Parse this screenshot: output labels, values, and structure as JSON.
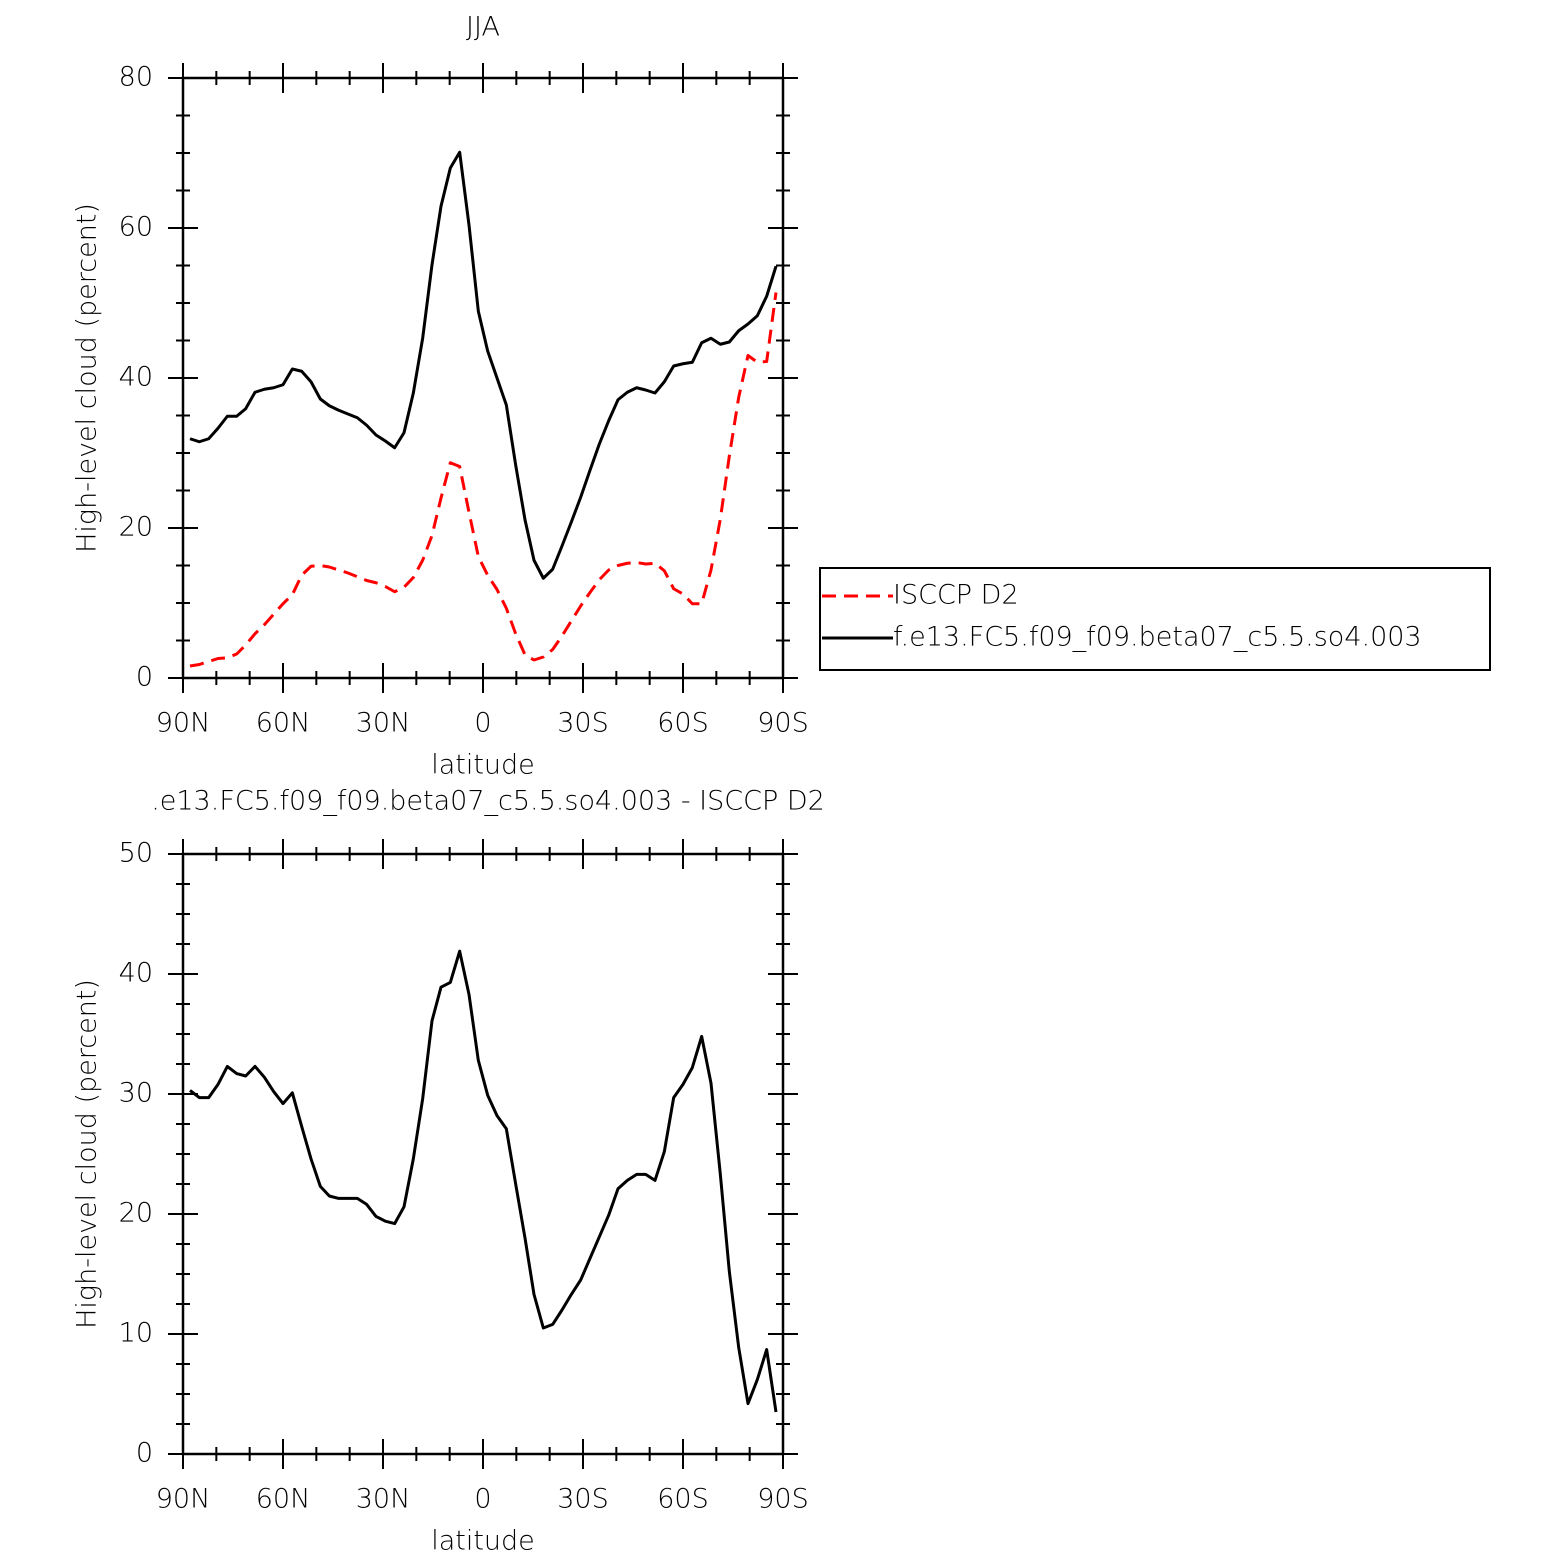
{
  "chart_data": [
    {
      "type": "line",
      "title": "JJA",
      "xlabel": "latitude",
      "ylabel": "High-level cloud (percent)",
      "x": [
        87.9,
        85.1,
        82.3,
        79.5,
        76.7,
        73.9,
        71.2,
        68.4,
        65.6,
        62.8,
        60.0,
        57.2,
        54.4,
        51.6,
        48.8,
        46.1,
        43.3,
        40.5,
        37.7,
        34.9,
        32.1,
        29.3,
        26.5,
        23.7,
        20.9,
        18.1,
        15.3,
        12.6,
        9.8,
        7.0,
        4.2,
        1.4,
        -1.4,
        -4.2,
        -7.0,
        -9.8,
        -12.6,
        -15.3,
        -18.1,
        -20.9,
        -23.7,
        -26.5,
        -29.3,
        -32.1,
        -34.9,
        -37.7,
        -40.5,
        -43.3,
        -46.1,
        -48.8,
        -51.6,
        -54.4,
        -57.2,
        -60.0,
        -62.8,
        -65.6,
        -68.4,
        -71.2,
        -73.9,
        -76.7,
        -79.5,
        -82.3,
        -85.1,
        -87.9
      ],
      "xlim": [
        90,
        -90
      ],
      "xticks": [
        {
          "value": 90,
          "label": "90N"
        },
        {
          "value": 60,
          "label": "60N"
        },
        {
          "value": 30,
          "label": "30N"
        },
        0,
        {
          "value": -30,
          "label": "30S"
        },
        {
          "value": -60,
          "label": "60S"
        },
        {
          "value": -90,
          "label": "90S"
        }
      ],
      "ylim": [
        0,
        80
      ],
      "yticks": [
        0,
        20,
        40,
        60,
        80
      ],
      "legend": "right",
      "series": [
        {
          "name": "ISCCP D2",
          "color": "#ff0000",
          "style": "dashed",
          "values": [
            1.6,
            1.8,
            2.2,
            2.6,
            2.7,
            3.2,
            4.4,
            5.9,
            7.1,
            8.5,
            9.9,
            11.1,
            13.7,
            14.9,
            15.0,
            14.8,
            14.4,
            14.0,
            13.5,
            13.0,
            12.7,
            12.2,
            11.5,
            12.1,
            13.4,
            15.7,
            19.0,
            24.0,
            28.7,
            28.2,
            22.1,
            16.2,
            13.7,
            11.8,
            9.3,
            5.9,
            3.1,
            2.4,
            2.8,
            3.8,
            5.6,
            7.6,
            9.6,
            11.4,
            13.1,
            14.4,
            15.0,
            15.3,
            15.4,
            15.2,
            15.3,
            14.3,
            11.9,
            11.2,
            9.9,
            9.9,
            14.4,
            21.2,
            29.6,
            37.4,
            43.0,
            42.1,
            42.2,
            51.4
          ]
        },
        {
          "name": "f.e13.FC5.f09_f09.beta07_c5.5.so4.003",
          "color": "#000000",
          "style": "solid",
          "values": [
            31.9,
            31.5,
            31.9,
            33.3,
            34.9,
            34.9,
            35.9,
            38.1,
            38.5,
            38.7,
            39.1,
            41.2,
            40.9,
            39.5,
            37.2,
            36.3,
            35.7,
            35.2,
            34.7,
            33.7,
            32.4,
            31.6,
            30.7,
            32.7,
            38.0,
            45.3,
            55.1,
            62.9,
            68.0,
            70.1,
            60.4,
            48.9,
            43.6,
            40.0,
            36.4,
            28.4,
            21.1,
            15.7,
            13.3,
            14.5,
            17.6,
            20.8,
            24.1,
            27.7,
            31.2,
            34.3,
            37.1,
            38.1,
            38.7,
            38.4,
            38.0,
            39.5,
            41.6,
            41.9,
            42.1,
            44.7,
            45.3,
            44.5,
            44.8,
            46.3,
            47.2,
            48.3,
            50.9,
            54.9
          ]
        }
      ]
    },
    {
      "type": "line",
      "title": ".e13.FC5.f09_f09.beta07_c5.5.so4.003 - ISCCP D2",
      "xlabel": "latitude",
      "ylabel": "High-level cloud (percent)",
      "x": [
        87.9,
        85.1,
        82.3,
        79.5,
        76.7,
        73.9,
        71.2,
        68.4,
        65.6,
        62.8,
        60.0,
        57.2,
        54.4,
        51.6,
        48.8,
        46.1,
        43.3,
        40.5,
        37.7,
        34.9,
        32.1,
        29.3,
        26.5,
        23.7,
        20.9,
        18.1,
        15.3,
        12.6,
        9.8,
        7.0,
        4.2,
        1.4,
        -1.4,
        -4.2,
        -7.0,
        -9.8,
        -12.6,
        -15.3,
        -18.1,
        -20.9,
        -23.7,
        -26.5,
        -29.3,
        -32.1,
        -34.9,
        -37.7,
        -40.5,
        -43.3,
        -46.1,
        -48.8,
        -51.6,
        -54.4,
        -57.2,
        -60.0,
        -62.8,
        -65.6,
        -68.4,
        -71.2,
        -73.9,
        -76.7,
        -79.5,
        -82.3,
        -85.1,
        -87.9
      ],
      "xlim": [
        90,
        -90
      ],
      "xticks": [
        {
          "value": 90,
          "label": "90N"
        },
        {
          "value": 60,
          "label": "60N"
        },
        {
          "value": 30,
          "label": "30N"
        },
        0,
        {
          "value": -30,
          "label": "30S"
        },
        {
          "value": -60,
          "label": "60S"
        },
        {
          "value": -90,
          "label": "90S"
        }
      ],
      "ylim": [
        0,
        50
      ],
      "yticks": [
        0,
        10,
        20,
        30,
        40,
        50
      ],
      "series": [
        {
          "color": "#000000",
          "style": "solid",
          "values": [
            30.3,
            29.7,
            29.7,
            30.8,
            32.3,
            31.7,
            31.5,
            32.3,
            31.4,
            30.2,
            29.2,
            30.1,
            27.3,
            24.6,
            22.3,
            21.5,
            21.3,
            21.3,
            21.3,
            20.8,
            19.8,
            19.4,
            19.2,
            20.6,
            24.6,
            29.6,
            36.1,
            38.9,
            39.3,
            41.9,
            38.3,
            32.8,
            29.9,
            28.2,
            27.1,
            22.5,
            18.0,
            13.3,
            10.5,
            10.8,
            12.0,
            13.3,
            14.5,
            16.3,
            18.1,
            19.9,
            22.1,
            22.8,
            23.3,
            23.3,
            22.8,
            25.2,
            29.7,
            30.8,
            32.2,
            34.8,
            30.9,
            23.3,
            15.2,
            8.9,
            4.2,
            6.2,
            8.7,
            3.5
          ]
        }
      ]
    }
  ]
}
